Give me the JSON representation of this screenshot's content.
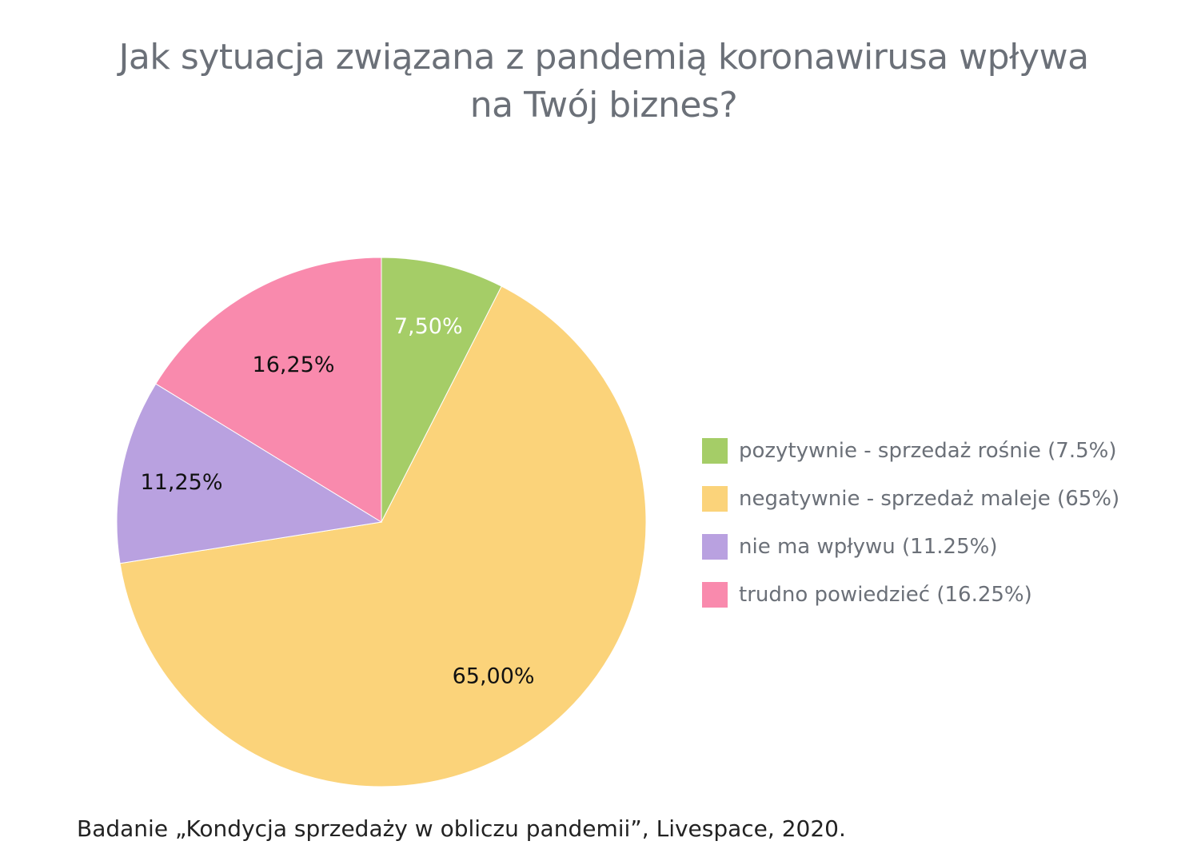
{
  "chart_data": {
    "type": "pie",
    "title_lines": [
      "Jak sytuacja związana z pandemią koronawirusa wpływa",
      "na Twój biznes?"
    ],
    "slices": [
      {
        "label": "pozytywnie - sprzedaż rośnie (7.5%)",
        "value": 7.5,
        "data_label": "7,50%",
        "color": "#a5cd67",
        "label_color": "#ffffff"
      },
      {
        "label": "negatywnie - sprzedaż maleje (65%)",
        "value": 65,
        "data_label": "65,00%",
        "color": "#fbd37a",
        "label_color": "#111111"
      },
      {
        "label": "nie ma wpływu (11.25%)",
        "value": 11.25,
        "data_label": "11,25%",
        "color": "#b9a1e0",
        "label_color": "#111111"
      },
      {
        "label": "trudno powiedzieć (16.25%)",
        "value": 16.25,
        "data_label": "16,25%",
        "color": "#f98aad",
        "label_color": "#111111"
      }
    ],
    "start_angle": "12 o'clock",
    "direction": "clockwise",
    "legend_position": "right"
  },
  "source_note": "Badanie „Kondycja sprzedaży w obliczu pandemii”, Livespace, 2020."
}
